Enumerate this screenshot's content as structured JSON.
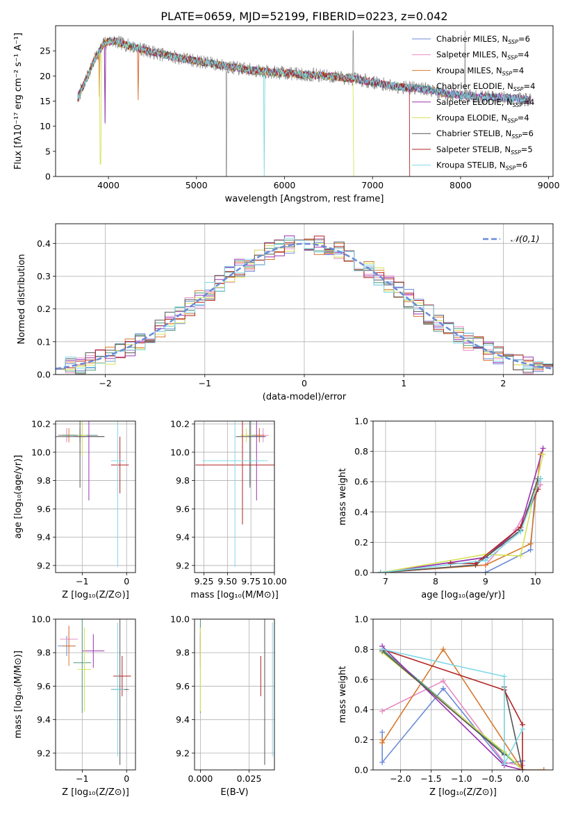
{
  "figure_title": "PLATE=0659, MJD=52199, FIBERID=0223, z=0.042",
  "series_colors": [
    "#6a8ad8",
    "#e78ac3",
    "#d9782d",
    "#4f9a7b",
    "#9b30b0",
    "#d4e157",
    "#555555",
    "#b22222",
    "#7fd8e6"
  ],
  "legend": [
    {
      "name": "Chabrier MILES",
      "n": "6"
    },
    {
      "name": "Salpeter MILES",
      "n": "4"
    },
    {
      "name": "Kroupa MILES",
      "n": "4"
    },
    {
      "name": "Chabrier ELODIE",
      "n": "4"
    },
    {
      "name": "Salpeter ELODIE",
      "n": "4"
    },
    {
      "name": "Kroupa ELODIE",
      "n": "4"
    },
    {
      "name": "Chabrier STELIB",
      "n": "6"
    },
    {
      "name": "Salpeter STELIB",
      "n": "5"
    },
    {
      "name": "Kroupa STELIB",
      "n": "6"
    }
  ],
  "chart_data": [
    {
      "type": "line",
      "id": "spectrum",
      "xlabel": "wavelength [Angstrom, rest frame]",
      "ylabel": "Flux [fλ10⁻¹⁷ erg cm⁻² s⁻¹ A⁻¹]",
      "xlim": [
        3400,
        9050
      ],
      "ylim": [
        0,
        30
      ],
      "xticks": [
        4000,
        5000,
        6000,
        7000,
        8000,
        9000
      ],
      "yticks": [
        0,
        5,
        10,
        15,
        20,
        25
      ],
      "grid": false,
      "legend_position": "right",
      "continuum": {
        "x": [
          3650,
          3750,
          3850,
          3950,
          4050,
          4200,
          4400,
          4600,
          4800,
          5000,
          5200,
          5400,
          5600,
          5800,
          6000,
          6200,
          6400,
          6600,
          6800,
          7000,
          7200,
          7400,
          7600,
          7800,
          8000,
          8200,
          8400,
          8600,
          8800
        ],
        "y": [
          15.5,
          19.5,
          23.5,
          26.5,
          27.0,
          26.2,
          25.2,
          24.3,
          23.6,
          23.0,
          22.4,
          21.7,
          21.2,
          20.8,
          20.6,
          20.3,
          20.1,
          19.8,
          19.4,
          18.8,
          18.1,
          17.7,
          17.4,
          16.6,
          16.2,
          15.9,
          15.7,
          15.6,
          15.2
        ]
      },
      "data_end_wavelength": [
        8800,
        8800,
        8800,
        8800,
        8800,
        6800,
        8800,
        7420,
        8750
      ],
      "absorption_drops": [
        {
          "wavelength": 3900,
          "series": [
            2
          ],
          "depth": 0.35
        },
        {
          "wavelength": 3910,
          "series": [
            5
          ],
          "depth": 0.9
        },
        {
          "wavelength": 3960,
          "series": [
            3,
            4
          ],
          "depth": 0.6
        },
        {
          "wavelength": 4340,
          "series": [
            1,
            2
          ],
          "depth": 0.4
        },
        {
          "wavelength": 5770,
          "series": [
            8
          ],
          "depth": 1.0
        },
        {
          "wavelength": 6790,
          "series": [
            5
          ],
          "depth": 1.0
        }
      ]
    },
    {
      "type": "histogram",
      "id": "residuals",
      "xlabel": "(data-model)/error",
      "ylabel": "Normed distribution",
      "xlim": [
        -2.5,
        2.5
      ],
      "ylim": [
        0,
        0.46
      ],
      "xticks": [
        -2,
        -1,
        0,
        1,
        2
      ],
      "yticks": [
        0.0,
        0.1,
        0.2,
        0.3,
        0.4
      ],
      "grid": true,
      "bin_width": 0.1,
      "reference_curve": {
        "name": "𝒩(0,1)",
        "mean": 0,
        "sigma": 1
      },
      "legend_position": "top-right"
    },
    {
      "type": "scatter",
      "id": "age_vs_z",
      "xlabel": "Z [log₁₀(Z/Z⊙)]",
      "ylabel": "age [log₁₀(age/yr)]",
      "xlim": [
        -1.6,
        0.2
      ],
      "ylim": [
        9.15,
        10.22
      ],
      "xticks": [
        -1,
        0
      ],
      "yticks": [
        9.2,
        9.4,
        9.6,
        9.8,
        10.0,
        10.2
      ],
      "grid": true,
      "points": [
        {
          "x": -1.35,
          "y": 10.12,
          "xerr": 0.2,
          "yerr": 0.05
        },
        {
          "x": -1.35,
          "y": 10.12,
          "xerr": 0.15,
          "yerr": 0.05
        },
        {
          "x": -1.3,
          "y": 10.12,
          "xerr": 0.2,
          "yerr": 0.05
        },
        {
          "x": -1.05,
          "y": 10.12,
          "xerr": 0.4,
          "yerr": 0.05
        },
        {
          "x": -0.85,
          "y": 10.11,
          "xerr": 0.35,
          "yerr": 0.45
        },
        {
          "x": -1.0,
          "y": 10.12,
          "xerr": 0.1,
          "yerr": 0.15
        },
        {
          "x": -1.05,
          "y": 10.11,
          "xerr": 0.55,
          "yerr": 0.36
        },
        {
          "x": -0.15,
          "y": 9.91,
          "xerr": 0.2,
          "yerr": 0.2
        },
        {
          "x": -0.2,
          "y": 9.94,
          "xerr": 0.15,
          "yerr": 0.75
        }
      ]
    },
    {
      "type": "scatter",
      "id": "age_vs_mass",
      "xlabel": "mass [log₁₀(M/M⊙)]",
      "ylabel": "",
      "xlim": [
        9.15,
        10.0
      ],
      "ylim": [
        9.15,
        10.22
      ],
      "xticks": [
        9.25,
        9.5,
        9.75,
        10.0
      ],
      "xticklabels": [
        "9.25",
        "9.50",
        "9.75",
        "10.00"
      ],
      "yticks": [
        9.2,
        9.4,
        9.6,
        9.8,
        10.0,
        10.2
      ],
      "grid": true,
      "points": [
        {
          "x": 9.84,
          "y": 10.12,
          "xerr": 0.06,
          "yerr": 0.05
        },
        {
          "x": 9.88,
          "y": 10.12,
          "xerr": 0.06,
          "yerr": 0.05
        },
        {
          "x": 9.84,
          "y": 10.12,
          "xerr": 0.05,
          "yerr": 0.05
        },
        {
          "x": 9.74,
          "y": 10.12,
          "xerr": 0.05,
          "yerr": 0.35
        },
        {
          "x": 9.81,
          "y": 10.11,
          "xerr": 0.1,
          "yerr": 0.45
        },
        {
          "x": 9.7,
          "y": 10.12,
          "xerr": 0.06,
          "yerr": 0.05
        },
        {
          "x": 9.74,
          "y": 10.11,
          "xerr": 0.15,
          "yerr": 0.36
        },
        {
          "x": 9.66,
          "y": 9.91,
          "xerr": 0.5,
          "yerr": 0.42
        },
        {
          "x": 9.58,
          "y": 9.94,
          "xerr": 0.35,
          "yerr": 0.75
        }
      ]
    },
    {
      "type": "line",
      "id": "mass_weight_vs_age",
      "xlabel": "age  [log₁₀(age/yr)]",
      "ylabel": "mass weight",
      "xlim": [
        6.75,
        10.35
      ],
      "ylim": [
        0,
        1.0
      ],
      "xticks": [
        7,
        8,
        9,
        10
      ],
      "yticks": [
        0.0,
        0.2,
        0.4,
        0.6,
        0.8,
        1.0
      ],
      "grid": true,
      "series": [
        {
          "x": [
            6.9,
            9.0,
            9.9,
            10.0,
            10.1
          ],
          "y": [
            0.0,
            0.0,
            0.15,
            0.55,
            0.62
          ]
        },
        {
          "x": [
            6.9,
            9.0,
            9.6,
            10.1
          ],
          "y": [
            0.0,
            0.05,
            0.28,
            0.58
          ]
        },
        {
          "x": [
            6.9,
            9.0,
            9.9,
            10.1
          ],
          "y": [
            0.0,
            0.05,
            0.19,
            0.78
          ]
        },
        {
          "x": [
            6.9,
            9.0,
            9.7,
            10.1
          ],
          "y": [
            0.0,
            0.1,
            0.28,
            0.62
          ]
        },
        {
          "x": [
            6.9,
            9.0,
            9.7,
            10.15
          ],
          "y": [
            0.0,
            0.1,
            0.3,
            0.82
          ]
        },
        {
          "x": [
            6.9,
            9.0,
            9.7,
            10.15
          ],
          "y": [
            0.0,
            0.12,
            0.11,
            0.78
          ]
        },
        {
          "x": [
            6.9,
            8.8,
            9.7,
            10.05
          ],
          "y": [
            0.0,
            0.05,
            0.28,
            0.62
          ]
        },
        {
          "x": [
            8.3,
            8.8,
            9.7,
            10.05
          ],
          "y": [
            0.06,
            0.06,
            0.3,
            0.55
          ]
        },
        {
          "x": [
            6.9,
            9.0,
            9.7,
            10.1
          ],
          "y": [
            0.0,
            0.08,
            0.27,
            0.62
          ]
        }
      ]
    },
    {
      "type": "scatter",
      "id": "mass_vs_z",
      "xlabel": "Z [log₁₀(Z/Z⊙)]",
      "ylabel": "mass [log₁₀(M/M⊙)]",
      "xlim": [
        -1.6,
        0.2
      ],
      "ylim": [
        9.1,
        10.0
      ],
      "xticks": [
        -1,
        0
      ],
      "yticks": [
        9.2,
        9.4,
        9.6,
        9.8,
        10.0
      ],
      "grid": true,
      "points": [
        {
          "x": -1.35,
          "y": 9.84,
          "xerr": 0.2,
          "yerr": 0.06
        },
        {
          "x": -1.3,
          "y": 9.88,
          "xerr": 0.2,
          "yerr": 0.08
        },
        {
          "x": -1.3,
          "y": 9.84,
          "xerr": 0.15,
          "yerr": 0.12
        },
        {
          "x": -1.0,
          "y": 9.74,
          "xerr": 0.2,
          "yerr": 0.3
        },
        {
          "x": -0.75,
          "y": 9.81,
          "xerr": 0.25,
          "yerr": 0.1
        },
        {
          "x": -0.95,
          "y": 9.7,
          "xerr": 0.15,
          "yerr": 0.25
        },
        {
          "x": -0.15,
          "y": 9.58,
          "xerr": 0.2,
          "yerr": 0.45
        },
        {
          "x": -0.1,
          "y": 9.66,
          "xerr": 0.2,
          "yerr": 0.12
        },
        {
          "x": -0.2,
          "y": 9.58,
          "xerr": 0.15,
          "yerr": 0.4
        }
      ]
    },
    {
      "type": "scatter",
      "id": "mass_vs_ebv",
      "xlabel": "E(B-V)",
      "ylabel": "",
      "xlim": [
        -0.003,
        0.038
      ],
      "ylim": [
        9.1,
        10.0
      ],
      "xticks": [
        0.0,
        0.025
      ],
      "xticklabels": [
        "0.000",
        "0.025"
      ],
      "yticks": [
        9.2,
        9.4,
        9.6,
        9.8,
        10.0
      ],
      "grid": true,
      "points": [
        {
          "x": 0.0,
          "y": 9.84,
          "yerr": 0.06
        },
        {
          "x": 0.0,
          "y": 9.88,
          "yerr": 0.08
        },
        {
          "x": 0.0,
          "y": 9.84,
          "yerr": 0.12
        },
        {
          "x": 0.0,
          "y": 9.74,
          "yerr": 0.3
        },
        {
          "x": 0.0,
          "y": 9.81,
          "yerr": 0.1
        },
        {
          "x": 0.0,
          "y": 9.7,
          "yerr": 0.25
        },
        {
          "x": 0.033,
          "y": 9.58,
          "yerr": 0.45
        },
        {
          "x": 0.031,
          "y": 9.66,
          "yerr": 0.12
        },
        {
          "x": 0.037,
          "y": 9.58,
          "yerr": 0.4
        }
      ]
    },
    {
      "type": "line",
      "id": "mass_weight_vs_z",
      "xlabel": "Z [log₁₀(Z/Z⊙)]",
      "ylabel": "mass weight",
      "xlim": [
        -2.45,
        0.5
      ],
      "ylim": [
        0,
        1.0
      ],
      "xticks": [
        -2.0,
        -1.5,
        -1.0,
        -0.5,
        0.0
      ],
      "xticklabels": [
        "−2.0",
        "−1.5",
        "−1.0",
        "−0.5",
        "0.0"
      ],
      "yticks": [
        0.0,
        0.2,
        0.4,
        0.6,
        0.8,
        1.0
      ],
      "grid": true,
      "series": [
        {
          "x": [
            -2.3,
            -2.3,
            -1.3,
            -0.3,
            0.0,
            0.0
          ],
          "y": [
            0.25,
            0.05,
            0.54,
            0.04,
            0.06,
            0.0
          ]
        },
        {
          "x": [
            -2.3,
            -1.3,
            -0.3,
            0.0,
            0.0
          ],
          "y": [
            0.39,
            0.59,
            0.05,
            0.03,
            0.0
          ]
        },
        {
          "x": [
            -2.3,
            -2.3,
            -1.3,
            0.0,
            0.35
          ],
          "y": [
            0.2,
            0.18,
            0.8,
            0.0,
            0.0
          ]
        },
        {
          "x": [
            -2.3,
            -0.3,
            0.0
          ],
          "y": [
            0.8,
            0.11,
            0.0
          ]
        },
        {
          "x": [
            -2.3,
            -0.3,
            0.0
          ],
          "y": [
            0.82,
            0.03,
            0.0
          ]
        },
        {
          "x": [
            -2.3,
            -0.3,
            0.0
          ],
          "y": [
            0.78,
            0.12,
            0.0
          ]
        },
        {
          "x": [
            -2.3,
            -0.3,
            -0.3,
            0.0
          ],
          "y": [
            0.79,
            0.1,
            0.55,
            0.0
          ]
        },
        {
          "x": [
            -2.3,
            -0.3,
            0.0,
            0.0
          ],
          "y": [
            0.8,
            0.53,
            0.3,
            0.0
          ]
        },
        {
          "x": [
            -2.3,
            -0.3,
            -0.3,
            0.0
          ],
          "y": [
            0.8,
            0.62,
            0.04,
            0.27
          ]
        }
      ]
    }
  ]
}
